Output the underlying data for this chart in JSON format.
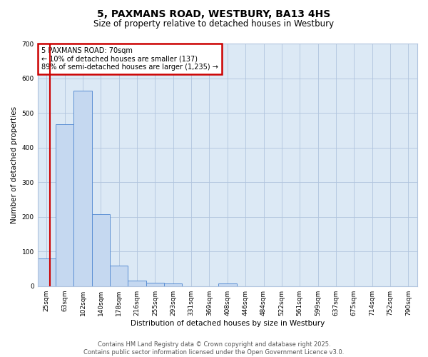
{
  "title_line1": "5, PAXMANS ROAD, WESTBURY, BA13 4HS",
  "title_line2": "Size of property relative to detached houses in Westbury",
  "xlabel": "Distribution of detached houses by size in Westbury",
  "ylabel": "Number of detached properties",
  "categories": [
    "25sqm",
    "63sqm",
    "102sqm",
    "140sqm",
    "178sqm",
    "216sqm",
    "255sqm",
    "293sqm",
    "331sqm",
    "369sqm",
    "408sqm",
    "446sqm",
    "484sqm",
    "522sqm",
    "561sqm",
    "599sqm",
    "637sqm",
    "675sqm",
    "714sqm",
    "752sqm",
    "790sqm"
  ],
  "values": [
    80,
    467,
    565,
    208,
    60,
    15,
    10,
    8,
    0,
    0,
    8,
    0,
    0,
    0,
    0,
    0,
    0,
    0,
    0,
    0,
    0
  ],
  "bar_color": "#c5d8f0",
  "bar_edge_color": "#5b8fd4",
  "bar_linewidth": 0.7,
  "red_line_x": 0.18,
  "annotation_text": "5 PAXMANS ROAD: 70sqm\n← 10% of detached houses are smaller (137)\n89% of semi-detached houses are larger (1,235) →",
  "annotation_box_color": "#ffffff",
  "annotation_border_color": "#cc0000",
  "ylim": [
    0,
    700
  ],
  "yticks": [
    0,
    100,
    200,
    300,
    400,
    500,
    600,
    700
  ],
  "fig_bg_color": "#ffffff",
  "plot_bg_color": "#dce9f5",
  "grid_color": "#b0c4de",
  "footer_line1": "Contains HM Land Registry data © Crown copyright and database right 2025.",
  "footer_line2": "Contains public sector information licensed under the Open Government Licence v3.0.",
  "title_fontsize": 10,
  "subtitle_fontsize": 8.5,
  "axis_label_fontsize": 7.5,
  "tick_fontsize": 6.5,
  "annotation_fontsize": 7,
  "footer_fontsize": 6
}
